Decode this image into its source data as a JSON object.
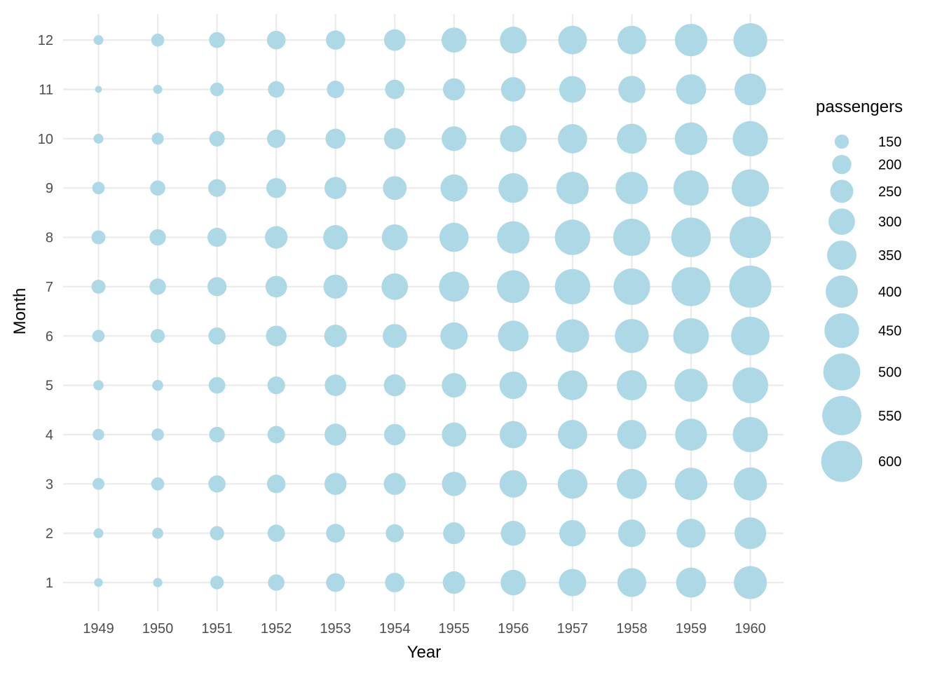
{
  "chart_data": {
    "type": "scatter",
    "title": "",
    "xlabel": "Year",
    "ylabel": "Month",
    "x": [
      1949,
      1950,
      1951,
      1952,
      1953,
      1954,
      1955,
      1956,
      1957,
      1958,
      1959,
      1960
    ],
    "y": [
      1,
      2,
      3,
      4,
      5,
      6,
      7,
      8,
      9,
      10,
      11,
      12
    ],
    "size_variable": "passengers",
    "point_color": "#add8e6",
    "grid": true,
    "legend": {
      "title": "passengers",
      "placement": "right",
      "breaks": [
        150,
        200,
        250,
        300,
        350,
        400,
        450,
        500,
        550,
        600
      ]
    },
    "values": {
      "1949": [
        112,
        118,
        132,
        129,
        121,
        135,
        148,
        148,
        136,
        119,
        104,
        118
      ],
      "1950": [
        115,
        126,
        141,
        135,
        125,
        149,
        170,
        170,
        158,
        133,
        114,
        140
      ],
      "1951": [
        145,
        150,
        178,
        163,
        172,
        178,
        199,
        199,
        184,
        162,
        146,
        166
      ],
      "1952": [
        171,
        180,
        193,
        181,
        183,
        218,
        230,
        242,
        209,
        191,
        172,
        194
      ],
      "1953": [
        196,
        196,
        236,
        235,
        229,
        243,
        264,
        272,
        237,
        211,
        180,
        201
      ],
      "1954": [
        204,
        188,
        235,
        227,
        234,
        264,
        302,
        293,
        259,
        229,
        203,
        229
      ],
      "1955": [
        242,
        233,
        267,
        269,
        270,
        315,
        364,
        347,
        312,
        274,
        237,
        278
      ],
      "1956": [
        284,
        277,
        317,
        313,
        318,
        374,
        413,
        405,
        355,
        306,
        271,
        306
      ],
      "1957": [
        315,
        301,
        356,
        348,
        355,
        422,
        465,
        467,
        404,
        347,
        305,
        336
      ],
      "1958": [
        340,
        318,
        362,
        348,
        363,
        435,
        491,
        505,
        404,
        359,
        310,
        337
      ],
      "1959": [
        360,
        342,
        406,
        396,
        420,
        472,
        548,
        559,
        463,
        407,
        362,
        405
      ],
      "1960": [
        417,
        391,
        419,
        461,
        472,
        535,
        622,
        606,
        508,
        461,
        390,
        432
      ]
    }
  }
}
